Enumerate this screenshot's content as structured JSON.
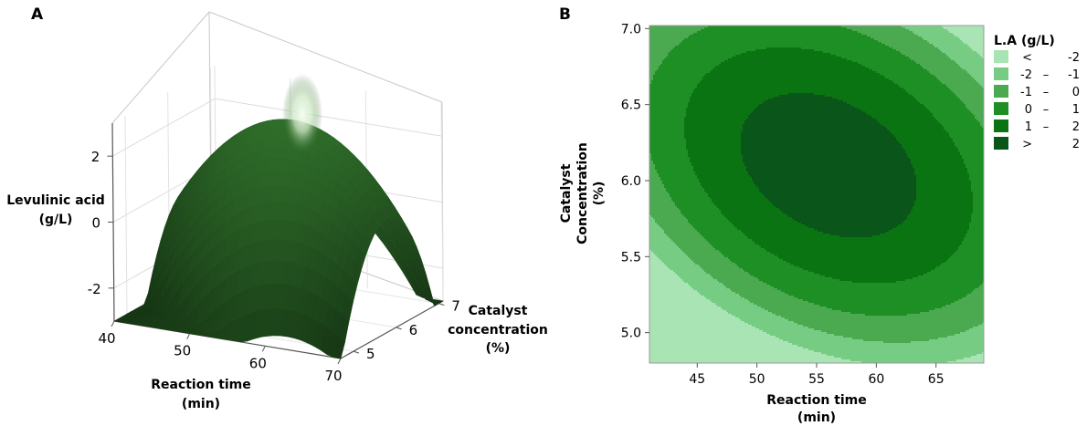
{
  "panel_a": {
    "label": "A",
    "zlabel_line1": "Levulinic acid",
    "zlabel_line2": "(g/L)",
    "xlabel_line1": "Reaction time",
    "xlabel_line2": "(min)",
    "ylabel_line1": "Catalyst",
    "ylabel_line2": "concentration",
    "ylabel_line3": "(%)"
  },
  "panel_b": {
    "label": "B",
    "xlabel_line1": "Reaction time",
    "xlabel_line2": "(min)",
    "ylabel_line1": "Catalyst",
    "ylabel_line2": "Concentration",
    "ylabel_line3": "(%)",
    "legend_title": "L.A (g/L)"
  },
  "chart_data": [
    {
      "type": "surface",
      "panel": "A",
      "x_ticks": [
        "40",
        "50",
        "60",
        "70"
      ],
      "y_ticks": [
        "5",
        "6",
        "7"
      ],
      "z_ticks": [
        "-2",
        "0",
        "2"
      ],
      "xlim": [
        40,
        70
      ],
      "ylim": [
        4.7,
        7.1
      ],
      "zlim": [
        -3,
        3
      ],
      "model": {
        "x_center": 56,
        "y_center": 6.1,
        "peak": 2.6,
        "a": 0.0122,
        "b": 2.95,
        "c": 0.12
      },
      "colors": {
        "surface_dark": "#0f2a10",
        "surface_light": "#2f6b2a",
        "highlight": "#f5fff2"
      }
    },
    {
      "type": "contour",
      "panel": "B",
      "x_ticks": [
        "45",
        "50",
        "55",
        "60",
        "65"
      ],
      "y_ticks": [
        "5.0",
        "5.5",
        "6.0",
        "6.5",
        "7.0"
      ],
      "xlim": [
        41,
        69
      ],
      "ylim": [
        4.8,
        7.02
      ],
      "model": {
        "x_center": 56,
        "y_center": 6.1,
        "peak": 2.6,
        "a": 0.0122,
        "b": 2.95,
        "c": 0.12
      },
      "levels": [
        -2,
        -1,
        0,
        1,
        2
      ],
      "legend": [
        {
          "lo": "<",
          "hi": "-2",
          "color": "#a8e4b4"
        },
        {
          "lo": "-2",
          "sep": "–",
          "hi": "-1",
          "color": "#77cc83"
        },
        {
          "lo": "-1",
          "sep": "–",
          "hi": "0",
          "color": "#4baa50"
        },
        {
          "lo": "0",
          "sep": "–",
          "hi": "1",
          "color": "#1e8f24"
        },
        {
          "lo": "1",
          "sep": "–",
          "hi": "2",
          "color": "#0b7412"
        },
        {
          "lo": ">",
          "hi": "2",
          "color": "#0a5519"
        }
      ]
    }
  ]
}
